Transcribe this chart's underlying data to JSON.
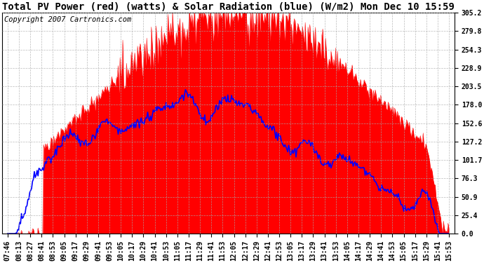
{
  "title": "Total PV Power (red) (watts) & Solar Radiation (blue) (W/m2) Mon Dec 10 15:59",
  "copyright": "Copyright 2007 Cartronics.com",
  "ymax": 305.2,
  "ymin": 0.0,
  "yticks": [
    0.0,
    25.4,
    50.9,
    76.3,
    101.7,
    127.2,
    152.6,
    178.0,
    203.5,
    228.9,
    254.3,
    279.8,
    305.2
  ],
  "background_color": "#ffffff",
  "plot_bg_color": "#ffffff",
  "grid_color": "#aaaaaa",
  "red_color": "#ff0000",
  "blue_color": "#0000ff",
  "xtick_labels": [
    "07:46",
    "08:13",
    "08:27",
    "08:41",
    "08:53",
    "09:05",
    "09:17",
    "09:29",
    "09:41",
    "09:53",
    "10:05",
    "10:17",
    "10:29",
    "10:41",
    "10:53",
    "11:05",
    "11:17",
    "11:29",
    "11:41",
    "11:53",
    "12:05",
    "12:17",
    "12:29",
    "12:41",
    "12:53",
    "13:05",
    "13:17",
    "13:29",
    "13:41",
    "13:53",
    "14:05",
    "14:17",
    "14:29",
    "14:41",
    "14:53",
    "15:05",
    "15:17",
    "15:29",
    "15:41",
    "15:53"
  ],
  "title_fontsize": 10,
  "tick_fontsize": 7,
  "copyright_fontsize": 7.5
}
